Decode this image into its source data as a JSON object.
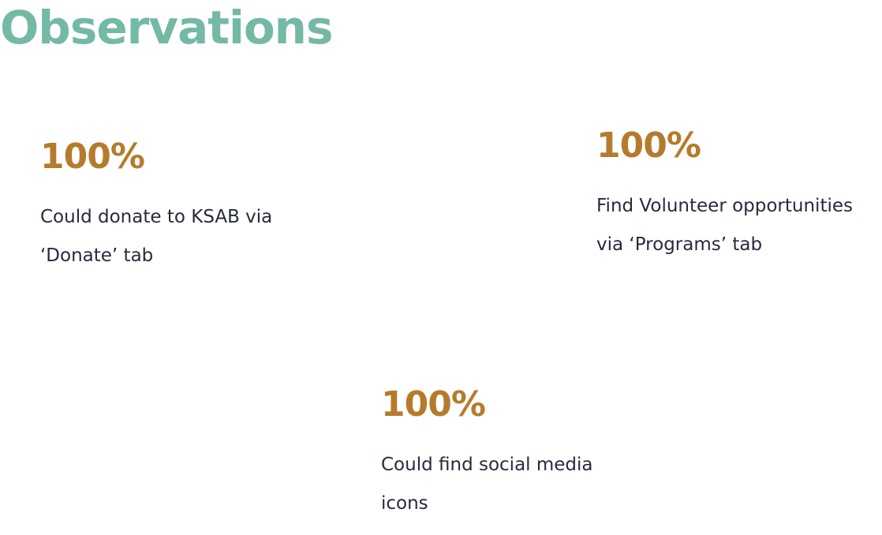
{
  "colors": {
    "title": "#74b9a6",
    "stat_value": "#b57b2c",
    "body_text": "#262a3e"
  },
  "header": {
    "title": "Observations"
  },
  "observations": [
    {
      "value": "100%",
      "desc_line1": "Could donate to KSAB via",
      "desc_line2": "‘Donate’ tab"
    },
    {
      "value": "100%",
      "desc_line1": "Find Volunteer opportunities",
      "desc_line2": "via ‘Programs’ tab"
    },
    {
      "value": "100%",
      "desc_line1": "Could find social media",
      "desc_line2": "icons"
    }
  ]
}
